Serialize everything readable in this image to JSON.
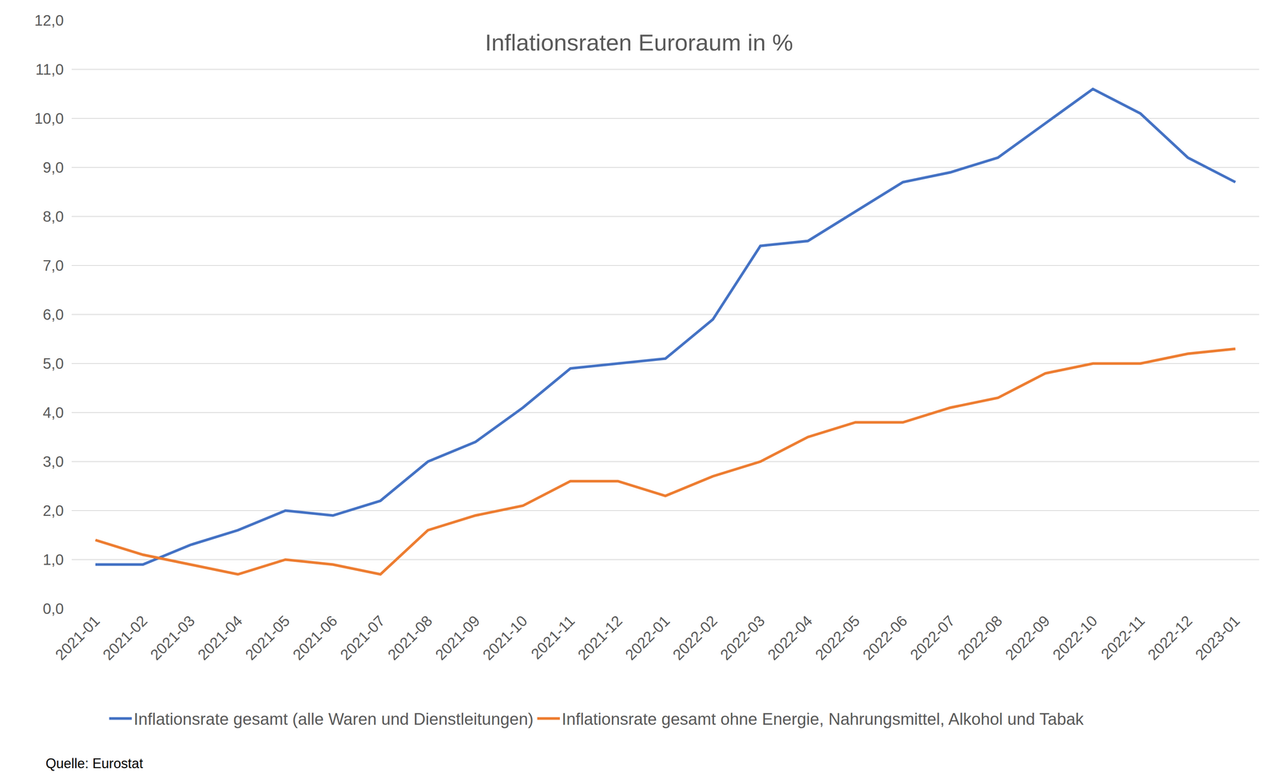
{
  "chart_data": {
    "type": "line",
    "title": "Inflationsraten Euroraum in %",
    "source": "Quelle: Eurostat",
    "categories": [
      "2021-01",
      "2021-02",
      "2021-03",
      "2021-04",
      "2021-05",
      "2021-06",
      "2021-07",
      "2021-08",
      "2021-09",
      "2021-10",
      "2021-11",
      "2021-12",
      "2022-01",
      "2022-02",
      "2022-03",
      "2022-04",
      "2022-05",
      "2022-06",
      "2022-07",
      "2022-08",
      "2022-09",
      "2022-10",
      "2022-11",
      "2022-12",
      "2023-01"
    ],
    "series": [
      {
        "name": "Inflationsrate gesamt (alle Waren und Dienstleitungen)",
        "color": "#4472c4",
        "values": [
          0.9,
          0.9,
          1.3,
          1.6,
          2.0,
          1.9,
          2.2,
          3.0,
          3.4,
          4.1,
          4.9,
          5.0,
          5.1,
          5.9,
          7.4,
          7.5,
          8.1,
          8.7,
          8.9,
          9.2,
          9.9,
          10.6,
          10.1,
          9.2,
          8.7
        ]
      },
      {
        "name": "Inflationsrate gesamt ohne Energie, Nahrungsmittel, Alkohol und Tabak",
        "color": "#ed7d31",
        "values": [
          1.4,
          1.1,
          0.9,
          0.7,
          1.0,
          0.9,
          0.7,
          1.6,
          1.9,
          2.1,
          2.6,
          2.6,
          2.3,
          2.7,
          3.0,
          3.5,
          3.8,
          3.8,
          4.1,
          4.3,
          4.8,
          5.0,
          5.0,
          5.2,
          5.3
        ]
      }
    ],
    "ylim": [
      0,
      12
    ],
    "yticks": [
      {
        "value": 0,
        "label": "0,0"
      },
      {
        "value": 1,
        "label": "1,0"
      },
      {
        "value": 2,
        "label": "2,0"
      },
      {
        "value": 3,
        "label": "3,0"
      },
      {
        "value": 4,
        "label": "4,0"
      },
      {
        "value": 5,
        "label": "5,0"
      },
      {
        "value": 6,
        "label": "6,0"
      },
      {
        "value": 7,
        "label": "7,0"
      },
      {
        "value": 8,
        "label": "8,0"
      },
      {
        "value": 9,
        "label": "9,0"
      },
      {
        "value": 10,
        "label": "10,0"
      },
      {
        "value": 11,
        "label": "11,0"
      },
      {
        "value": 12,
        "label": "12,0"
      }
    ],
    "grid": true,
    "legend": "bottom"
  }
}
